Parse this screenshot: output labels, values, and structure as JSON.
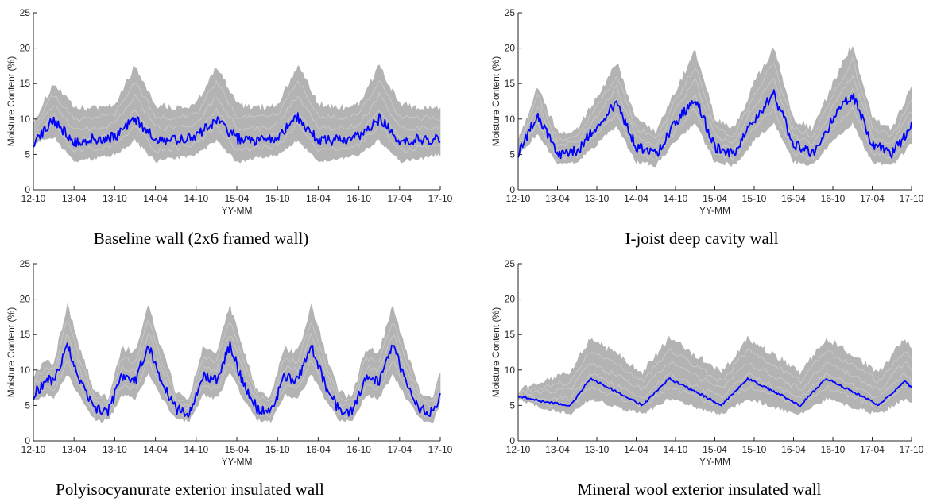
{
  "chart_data": [
    {
      "type": "line",
      "caption": "Baseline wall (2x6 framed wall)",
      "xlabel": "YY-MM",
      "ylabel": "Moisture Content (%)",
      "ylim": [
        0,
        25
      ],
      "yticks": [
        "0",
        "5",
        "10",
        "15",
        "20",
        "25"
      ],
      "xticks": [
        "12-10",
        "13-04",
        "13-10",
        "14-04",
        "14-10",
        "15-04",
        "15-10",
        "16-04",
        "16-10",
        "17-04",
        "17-10"
      ],
      "series": [
        {
          "role": "representative",
          "color": "#0000ff",
          "x": [
            "12-10",
            "13-01",
            "13-04",
            "13-07",
            "13-10",
            "14-01",
            "14-04",
            "14-07",
            "14-10",
            "15-01",
            "15-04",
            "15-07",
            "15-10",
            "16-01",
            "16-04",
            "16-07",
            "16-10",
            "17-01",
            "17-04",
            "17-07",
            "17-10"
          ],
          "values": [
            6.8,
            9.8,
            6.8,
            7.2,
            7.5,
            10.2,
            7.0,
            7.0,
            7.5,
            10.0,
            7.2,
            7.0,
            7.5,
            10.2,
            7.0,
            7.0,
            7.5,
            10.0,
            7.0,
            7.2,
            7.2
          ]
        },
        {
          "role": "ensemble-upper",
          "color": "#b3b3b3",
          "values": [
            9.5,
            15.0,
            11.5,
            11.5,
            12.0,
            17.5,
            12.0,
            11.5,
            12.0,
            17.5,
            12.0,
            11.5,
            12.0,
            17.5,
            12.0,
            11.5,
            12.0,
            17.5,
            12.0,
            11.5,
            11.5
          ]
        },
        {
          "role": "ensemble-lower",
          "color": "#b3b3b3",
          "values": [
            6.5,
            7.5,
            4.0,
            4.5,
            5.0,
            7.0,
            4.0,
            4.5,
            5.0,
            7.0,
            4.0,
            4.5,
            5.0,
            7.0,
            4.0,
            4.5,
            5.0,
            7.0,
            4.0,
            4.5,
            5.0
          ]
        }
      ]
    },
    {
      "type": "line",
      "caption": "I-joist deep cavity wall",
      "xlabel": "YY-MM",
      "ylabel": "Moisture Content (%)",
      "ylim": [
        0,
        25
      ],
      "yticks": [
        "0",
        "5",
        "10",
        "15",
        "20",
        "25"
      ],
      "xticks": [
        "12-10",
        "13-04",
        "13-10",
        "14-04",
        "14-10",
        "15-04",
        "15-10",
        "16-04",
        "16-10",
        "17-04",
        "17-10"
      ],
      "series": [
        {
          "role": "representative",
          "color": "#0000ff",
          "x": [
            "12-10",
            "13-01",
            "13-04",
            "13-07",
            "13-10",
            "14-01",
            "14-04",
            "14-07",
            "14-10",
            "15-01",
            "15-04",
            "15-07",
            "15-10",
            "16-01",
            "16-04",
            "16-07",
            "16-10",
            "17-01",
            "17-04",
            "17-07",
            "17-10"
          ],
          "values": [
            5.3,
            10.5,
            5.0,
            5.5,
            9.0,
            12.3,
            6.0,
            5.0,
            9.5,
            13.0,
            6.0,
            5.0,
            10.0,
            13.5,
            6.5,
            5.0,
            10.0,
            13.5,
            6.5,
            5.0,
            9.0
          ]
        },
        {
          "role": "ensemble-upper",
          "color": "#b3b3b3",
          "values": [
            7.0,
            14.5,
            8.0,
            8.5,
            13.0,
            18.0,
            10.0,
            8.0,
            14.0,
            19.5,
            10.0,
            8.5,
            15.0,
            20.0,
            10.0,
            8.5,
            15.0,
            20.5,
            10.0,
            8.5,
            14.5
          ]
        },
        {
          "role": "ensemble-lower",
          "color": "#b3b3b3",
          "values": [
            5.0,
            8.0,
            3.5,
            4.0,
            6.5,
            9.0,
            4.0,
            3.5,
            7.0,
            9.5,
            4.0,
            3.5,
            7.0,
            9.5,
            4.0,
            3.5,
            7.0,
            9.5,
            4.0,
            3.5,
            6.5
          ]
        }
      ]
    },
    {
      "type": "line",
      "caption": "Polyisocyanurate exterior insulated wall",
      "xlabel": "YY-MM",
      "ylabel": "Moisture Content (%)",
      "ylim": [
        0,
        25
      ],
      "yticks": [
        "0",
        "5",
        "10",
        "15",
        "20",
        "25"
      ],
      "xticks": [
        "12-10",
        "13-04",
        "13-10",
        "14-04",
        "14-10",
        "15-04",
        "15-10",
        "16-04",
        "16-10",
        "17-04",
        "17-10"
      ],
      "series": [
        {
          "role": "representative",
          "color": "#0000ff",
          "x": [
            "12-10",
            "12-12",
            "13-01",
            "13-03",
            "13-05",
            "13-07",
            "13-09",
            "13-11",
            "14-01",
            "14-03",
            "14-05",
            "14-07",
            "14-09",
            "14-11",
            "15-01",
            "15-03",
            "15-05",
            "15-07",
            "15-09",
            "15-11",
            "16-01",
            "16-03",
            "16-05",
            "16-07",
            "16-09",
            "16-11",
            "17-01",
            "17-03",
            "17-05",
            "17-07",
            "17-09",
            "17-10"
          ],
          "values": [
            6.5,
            8.5,
            8.5,
            13.5,
            8.0,
            4.5,
            4.0,
            9.0,
            8.5,
            13.5,
            8.0,
            4.5,
            4.0,
            9.0,
            8.5,
            13.5,
            8.0,
            4.5,
            4.0,
            9.0,
            8.5,
            13.5,
            8.0,
            4.5,
            4.0,
            9.0,
            8.5,
            13.5,
            8.0,
            4.5,
            4.0,
            6.5
          ]
        },
        {
          "role": "ensemble-upper",
          "color": "#b3b3b3",
          "values": [
            9.5,
            11.5,
            11.0,
            19.0,
            12.5,
            7.0,
            6.0,
            13.0,
            12.5,
            19.0,
            12.5,
            7.0,
            6.0,
            13.0,
            12.5,
            19.0,
            12.5,
            7.0,
            6.0,
            13.0,
            12.5,
            19.0,
            12.5,
            7.0,
            6.0,
            13.0,
            12.5,
            19.0,
            12.5,
            7.0,
            6.0,
            9.5
          ]
        },
        {
          "role": "ensemble-lower",
          "color": "#b3b3b3",
          "values": [
            5.5,
            6.5,
            6.0,
            9.5,
            6.0,
            3.0,
            2.8,
            6.5,
            6.0,
            9.5,
            6.0,
            3.0,
            2.8,
            6.5,
            6.0,
            9.5,
            6.0,
            3.0,
            2.8,
            6.5,
            6.0,
            9.5,
            6.0,
            3.0,
            2.8,
            6.5,
            6.0,
            9.5,
            6.0,
            3.0,
            2.8,
            5.5
          ]
        }
      ]
    },
    {
      "type": "line",
      "caption": "Mineral wool exterior insulated wall",
      "xlabel": "YY-MM",
      "ylabel": "Moisture Content (%)",
      "ylim": [
        0,
        25
      ],
      "yticks": [
        "0",
        "5",
        "10",
        "15",
        "20",
        "25"
      ],
      "xticks": [
        "12-10",
        "13-04",
        "13-10",
        "14-04",
        "14-10",
        "15-04",
        "15-10",
        "16-04",
        "16-10",
        "17-04",
        "17-10"
      ],
      "series": [
        {
          "role": "representative",
          "color": "#0000ff",
          "x": [
            "12-10",
            "13-02",
            "13-06",
            "13-09",
            "14-02",
            "14-05",
            "14-09",
            "15-02",
            "15-05",
            "15-09",
            "16-02",
            "16-05",
            "16-09",
            "17-02",
            "17-05",
            "17-09",
            "17-10"
          ],
          "values": [
            6.3,
            5.5,
            5.0,
            8.8,
            6.5,
            5.0,
            8.8,
            6.5,
            5.0,
            8.8,
            6.5,
            5.0,
            8.8,
            6.5,
            5.0,
            8.5,
            7.5
          ]
        },
        {
          "role": "ensemble-upper",
          "color": "#b3b3b3",
          "values": [
            7.0,
            8.5,
            9.5,
            14.5,
            11.5,
            9.5,
            14.5,
            11.5,
            9.5,
            14.5,
            11.5,
            9.5,
            14.5,
            11.5,
            9.5,
            14.5,
            13.0
          ]
        },
        {
          "role": "ensemble-lower",
          "color": "#b3b3b3",
          "values": [
            6.0,
            4.5,
            3.8,
            6.0,
            4.5,
            3.8,
            6.0,
            4.5,
            3.8,
            6.0,
            4.5,
            3.8,
            6.0,
            4.5,
            3.8,
            6.0,
            5.5
          ]
        }
      ]
    }
  ]
}
